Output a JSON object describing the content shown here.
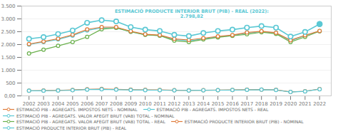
{
  "chart_data": {
    "type": "line",
    "x": [
      2002,
      2003,
      2004,
      2005,
      2006,
      2007,
      2008,
      2009,
      2010,
      2011,
      2012,
      2013,
      2014,
      2015,
      2016,
      2017,
      2018,
      2019,
      2020,
      2021,
      2022
    ],
    "xlim": [
      2001.5,
      2022.8
    ],
    "xticks": [
      2002,
      2003,
      2004,
      2005,
      2006,
      2007,
      2008,
      2009,
      2010,
      2011,
      2012,
      2013,
      2014,
      2015,
      2016,
      2017,
      2018,
      2019,
      2020,
      2021,
      2022
    ],
    "ylim": [
      0,
      3500
    ],
    "yticks": [
      {
        "value": 0,
        "label": "0,00"
      },
      500,
      {
        "value": 1000,
        "label": "1.000"
      },
      {
        "value": 1500,
        "label": "1.500"
      },
      {
        "value": 2000,
        "label": "2.000"
      },
      {
        "value": 2500,
        "label": "2.500"
      },
      {
        "value": 3000,
        "label": "3.000"
      },
      {
        "value": 3500,
        "label": "3.500"
      }
    ],
    "grid": true,
    "legend": "bottom",
    "marker": "o",
    "series": [
      {
        "name": "ESTIMACIÓ PIB - AGREGATS. IMPOSTOS NETS - NOMINAL",
        "color": "#e07b39",
        "values": [
          200,
          205,
          215,
          230,
          255,
          270,
          255,
          240,
          235,
          230,
          220,
          215,
          220,
          225,
          230,
          240,
          245,
          235,
          155,
          180,
          265
        ]
      },
      {
        "name": "ESTIMACIÓ PIB - AGREGATS. IMPOSTOS NETS - REAL",
        "color": "#5bc8d4",
        "values": [
          200,
          200,
          208,
          220,
          245,
          255,
          242,
          230,
          225,
          222,
          215,
          210,
          218,
          222,
          228,
          235,
          240,
          230,
          150,
          175,
          260
        ]
      },
      {
        "name": "ESTIMACIÓ PIB - AGREGATS. VALOR AFEGIT BRUT (VAB) TOTAL - NOMINAL",
        "color": "#5bc8d4",
        "values": [
          2000,
          2100,
          2200,
          2350,
          2550,
          2650,
          2650,
          2500,
          2380,
          2350,
          2200,
          2150,
          2220,
          2300,
          2350,
          2450,
          2500,
          2450,
          2150,
          2350,
          2520
        ]
      },
      {
        "name": "ESTIMACIÓ PIB - AGREGATS. VALOR AFEGIT BRUT (VAB) TOTAL - REAL",
        "color": "#6ab04c",
        "values": [
          1650,
          1800,
          1950,
          2100,
          2300,
          2600,
          2650,
          2500,
          2380,
          2350,
          2150,
          2100,
          2200,
          2280,
          2340,
          2400,
          2480,
          2420,
          2100,
          2300,
          2520
        ]
      },
      {
        "name": "ESTIMACIÓ PRODUCTE INTERIOR BRUT (PIB) - NOMINAL",
        "color": "#e07b39",
        "values": [
          2020,
          2120,
          2230,
          2380,
          2590,
          2680,
          2680,
          2520,
          2400,
          2370,
          2220,
          2180,
          2250,
          2320,
          2370,
          2470,
          2520,
          2460,
          2170,
          2360,
          2530
        ]
      },
      {
        "name": "ESTIMACIÓ PRODUCTE INTERIOR BRUT (PIB) - REAL",
        "color": "#5bc8d4",
        "values": [
          2220,
          2290,
          2410,
          2550,
          2850,
          2950,
          2900,
          2680,
          2580,
          2530,
          2380,
          2330,
          2450,
          2530,
          2580,
          2660,
          2720,
          2660,
          2310,
          2490,
          2798
        ]
      }
    ],
    "annotations": [
      {
        "text": "ESTIMACIÓ PRODUCTE INTERIOR BRUT (PIB) - REAL (2022):\n2.798,82",
        "x": 2013.2,
        "y": 3050
      }
    ]
  }
}
